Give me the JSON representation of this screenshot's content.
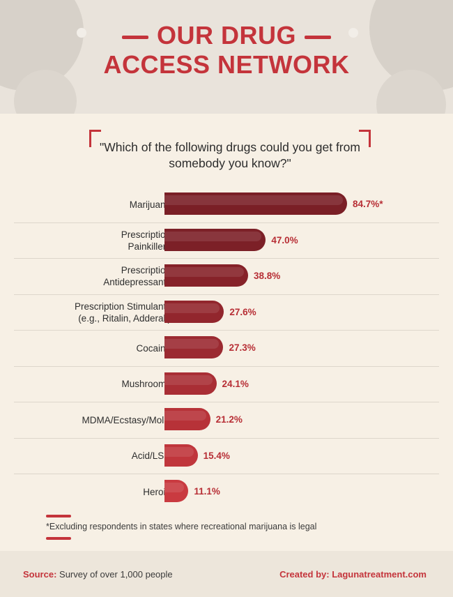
{
  "title": {
    "line1": "OUR DRUG",
    "line2": "ACCESS NETWORK"
  },
  "question": "\"Which of the following drugs could you get from somebody you know?\"",
  "chart_data": {
    "type": "bar",
    "orientation": "horizontal",
    "categories": [
      "Marijuana",
      "Prescription Painkillers",
      "Prescription Antidepressants",
      "Prescription Stimulants (e.g., Ritalin, Adderall)",
      "Cocaine",
      "Mushrooms",
      "MDMA/Ecstasy/Molly",
      "Acid/LSD",
      "Heroin"
    ],
    "category_lines": [
      [
        "Marijuana"
      ],
      [
        "Prescription",
        "Painkillers"
      ],
      [
        "Prescription",
        "Antidepressants"
      ],
      [
        "Prescription Stimulants",
        "(e.g., Ritalin, Adderall)"
      ],
      [
        "Cocaine"
      ],
      [
        "Mushrooms"
      ],
      [
        "MDMA/Ecstasy/Molly"
      ],
      [
        "Acid/LSD"
      ],
      [
        "Heroin"
      ]
    ],
    "values": [
      84.7,
      47.0,
      38.8,
      27.6,
      27.3,
      24.1,
      21.2,
      15.4,
      11.1
    ],
    "value_labels": [
      "84.7%*",
      "47.0%",
      "38.8%",
      "27.6%",
      "27.3%",
      "24.1%",
      "21.2%",
      "15.4%",
      "11.1%"
    ],
    "colors": [
      "#7a1f26",
      "#7c2027",
      "#862229",
      "#92262d",
      "#9b2a31",
      "#a92e35",
      "#b73238",
      "#c0363c",
      "#c93a40"
    ],
    "xlim": [
      0,
      100
    ]
  },
  "footnote": "*Excluding respondents in states where recreational marijuana is legal",
  "footer": {
    "source_label": "Source:",
    "source_text": "Survey of over 1,000 people",
    "created": "Created by: Lagunatreatment.com"
  },
  "colors": {
    "accent": "#c4343b",
    "background": "#f7f0e5"
  }
}
